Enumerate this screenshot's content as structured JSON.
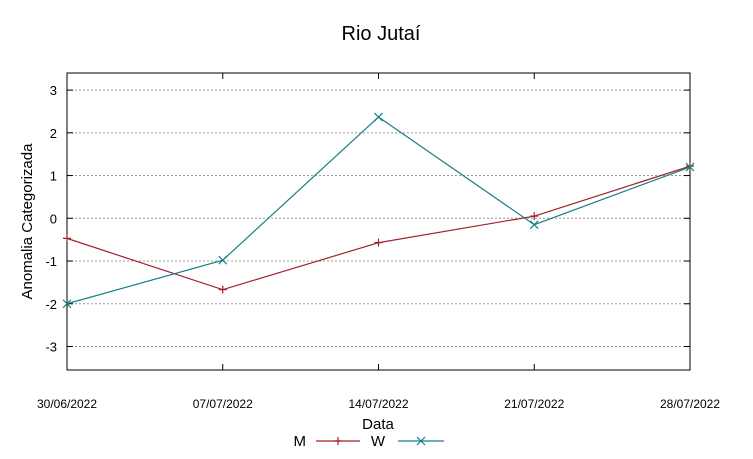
{
  "chart_data": {
    "type": "line",
    "title": "Rio Jutaí",
    "xlabel": "Data",
    "ylabel": "Anomalia Categorizada",
    "categories": [
      "30/06/2022",
      "07/07/2022",
      "14/07/2022",
      "21/07/2022",
      "28/07/2022"
    ],
    "ylim": [
      -3.55,
      3.4
    ],
    "yticks": [
      {
        "value": 3,
        "label": "3"
      },
      {
        "value": 2,
        "label": "2"
      },
      {
        "value": 1,
        "label": "1"
      },
      {
        "value": 0,
        "label": "0"
      },
      {
        "value": -1,
        "label": "-1"
      },
      {
        "value": -2,
        "label": "-2"
      },
      {
        "value": -3,
        "label": "-3"
      }
    ],
    "grid": true,
    "legend_position": "bottom-center",
    "series": [
      {
        "name": "M",
        "values": [
          -0.47,
          -1.67,
          -0.57,
          0.05,
          1.22
        ],
        "color": "#a0202a",
        "marker": "plus"
      },
      {
        "name": "W",
        "values": [
          -2.0,
          -0.98,
          2.37,
          -0.15,
          1.2
        ],
        "color": "#147f86",
        "marker": "cross"
      }
    ]
  }
}
